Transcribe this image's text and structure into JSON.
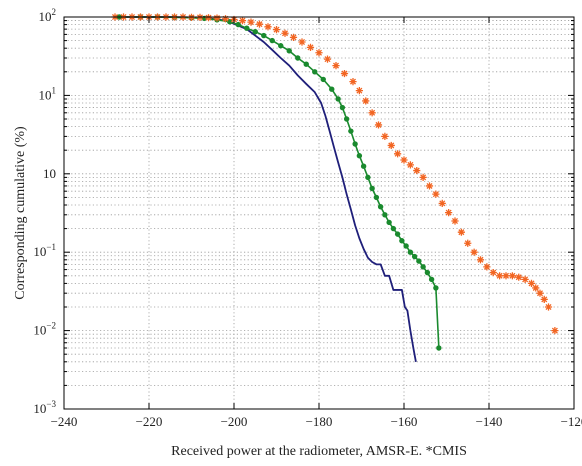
{
  "chart_data": {
    "type": "line",
    "title": "",
    "xlabel": "Received power at the radiometer, AMSR-E. *CMIS",
    "ylabel": "Corresponding cumulative (%)",
    "xlim": [
      -240,
      -120
    ],
    "ylim": [
      0.001,
      100
    ],
    "yscale": "log",
    "grid": true,
    "x_ticks": [
      {
        "value": -240,
        "label": "−240"
      },
      {
        "value": -220,
        "label": "−220"
      },
      {
        "value": -200,
        "label": "−200"
      },
      {
        "value": -180,
        "label": "−180"
      },
      {
        "value": -160,
        "label": "−160"
      },
      {
        "value": -140,
        "label": "−140"
      },
      {
        "value": -120,
        "label": "−120"
      }
    ],
    "y_ticks": [
      {
        "value": 100,
        "base": "10",
        "exp": "2"
      },
      {
        "value": 10,
        "base": "10",
        "exp": "1"
      },
      {
        "value": 1,
        "base": "10",
        "exp": ""
      },
      {
        "value": 0.1,
        "base": "10",
        "exp": "−1"
      },
      {
        "value": 0.01,
        "base": "10",
        "exp": "−2"
      },
      {
        "value": 0.001,
        "base": "10",
        "exp": "−3"
      }
    ],
    "series": [
      {
        "color": "#1f1f7a",
        "marker": "none",
        "points": [
          [
            -227,
            100
          ],
          [
            -215,
            100
          ],
          [
            -210,
            99
          ],
          [
            -205,
            95
          ],
          [
            -202,
            90
          ],
          [
            -200,
            82
          ],
          [
            -197,
            70
          ],
          [
            -195,
            58
          ],
          [
            -193,
            48
          ],
          [
            -191,
            38
          ],
          [
            -189,
            30
          ],
          [
            -187,
            24
          ],
          [
            -185,
            18
          ],
          [
            -183,
            14
          ],
          [
            -181,
            11
          ],
          [
            -179.5,
            8
          ],
          [
            -178.5,
            5.5
          ],
          [
            -177.5,
            3.5
          ],
          [
            -176.5,
            2.2
          ],
          [
            -175.5,
            1.4
          ],
          [
            -174.5,
            0.9
          ],
          [
            -173.5,
            0.55
          ],
          [
            -172.5,
            0.35
          ],
          [
            -171.5,
            0.22
          ],
          [
            -170.5,
            0.15
          ],
          [
            -169.5,
            0.11
          ],
          [
            -168.5,
            0.085
          ],
          [
            -167.5,
            0.075
          ],
          [
            -166.5,
            0.07
          ],
          [
            -165.5,
            0.07
          ],
          [
            -164.5,
            0.05
          ],
          [
            -163.5,
            0.05
          ],
          [
            -162.5,
            0.033
          ],
          [
            -161.5,
            0.033
          ],
          [
            -160.5,
            0.033
          ],
          [
            -159.8,
            0.02
          ],
          [
            -159.2,
            0.018
          ],
          [
            -158.5,
            0.01
          ],
          [
            -157.8,
            0.006
          ],
          [
            -157.2,
            0.004
          ]
        ]
      },
      {
        "color": "#1a8a2e",
        "marker": "circle",
        "points": [
          [
            -227,
            100
          ],
          [
            -222,
            100
          ],
          [
            -218,
            100
          ],
          [
            -214,
            99
          ],
          [
            -210,
            98
          ],
          [
            -207,
            96
          ],
          [
            -204,
            92
          ],
          [
            -201,
            87
          ],
          [
            -199,
            80
          ],
          [
            -197,
            72
          ],
          [
            -195,
            65
          ],
          [
            -193,
            58
          ],
          [
            -191,
            50
          ],
          [
            -189,
            43
          ],
          [
            -187,
            37
          ],
          [
            -185,
            30
          ],
          [
            -183,
            25
          ],
          [
            -181,
            20
          ],
          [
            -179,
            16
          ],
          [
            -177,
            12
          ],
          [
            -175.5,
            9
          ],
          [
            -174.5,
            7
          ],
          [
            -173.5,
            5
          ],
          [
            -172.5,
            3.5
          ],
          [
            -171.5,
            2.4
          ],
          [
            -170.5,
            1.7
          ],
          [
            -169.5,
            1.25
          ],
          [
            -168.5,
            0.9
          ],
          [
            -167.5,
            0.65
          ],
          [
            -166.5,
            0.5
          ],
          [
            -165.5,
            0.38
          ],
          [
            -164.5,
            0.3
          ],
          [
            -163.5,
            0.24
          ],
          [
            -162.5,
            0.2
          ],
          [
            -161.5,
            0.17
          ],
          [
            -160.5,
            0.14
          ],
          [
            -159.5,
            0.12
          ],
          [
            -158.5,
            0.1
          ],
          [
            -157.5,
            0.088
          ],
          [
            -156.5,
            0.077
          ],
          [
            -155.5,
            0.065
          ],
          [
            -154.5,
            0.055
          ],
          [
            -153.5,
            0.045
          ],
          [
            -152.5,
            0.035
          ],
          [
            -151.8,
            0.006
          ]
        ]
      },
      {
        "color": "#f26522",
        "marker": "star",
        "points": [
          [
            -228,
            100
          ],
          [
            -226,
            100
          ],
          [
            -224,
            100
          ],
          [
            -222,
            100
          ],
          [
            -220,
            100
          ],
          [
            -218,
            100
          ],
          [
            -216,
            100
          ],
          [
            -214,
            100
          ],
          [
            -212,
            100
          ],
          [
            -210,
            99
          ],
          [
            -208,
            99
          ],
          [
            -206,
            98
          ],
          [
            -204,
            97
          ],
          [
            -202,
            95
          ],
          [
            -200,
            93
          ],
          [
            -198,
            90
          ],
          [
            -196,
            86
          ],
          [
            -194,
            81
          ],
          [
            -192,
            75
          ],
          [
            -190,
            69
          ],
          [
            -188,
            62
          ],
          [
            -186,
            55
          ],
          [
            -184,
            48
          ],
          [
            -182,
            41
          ],
          [
            -180,
            35
          ],
          [
            -178,
            29
          ],
          [
            -176,
            24
          ],
          [
            -174,
            19
          ],
          [
            -172,
            15
          ],
          [
            -170.5,
            11.5
          ],
          [
            -169,
            8.5
          ],
          [
            -167.5,
            6
          ],
          [
            -166,
            4.2
          ],
          [
            -164.5,
            3
          ],
          [
            -163,
            2.3
          ],
          [
            -161.5,
            1.8
          ],
          [
            -160,
            1.5
          ],
          [
            -158.5,
            1.3
          ],
          [
            -157,
            1.1
          ],
          [
            -155.5,
            0.9
          ],
          [
            -154,
            0.7
          ],
          [
            -152.5,
            0.55
          ],
          [
            -151,
            0.42
          ],
          [
            -149.5,
            0.32
          ],
          [
            -148,
            0.25
          ],
          [
            -146.5,
            0.18
          ],
          [
            -145,
            0.13
          ],
          [
            -143.5,
            0.1
          ],
          [
            -142,
            0.08
          ],
          [
            -140.5,
            0.065
          ],
          [
            -139,
            0.055
          ],
          [
            -137.5,
            0.05
          ],
          [
            -136,
            0.05
          ],
          [
            -134.5,
            0.05
          ],
          [
            -133,
            0.048
          ],
          [
            -131.5,
            0.045
          ],
          [
            -130,
            0.04
          ],
          [
            -129,
            0.035
          ],
          [
            -128,
            0.03
          ],
          [
            -127,
            0.025
          ],
          [
            -126,
            0.02
          ],
          [
            -124.5,
            0.01
          ]
        ]
      }
    ]
  }
}
